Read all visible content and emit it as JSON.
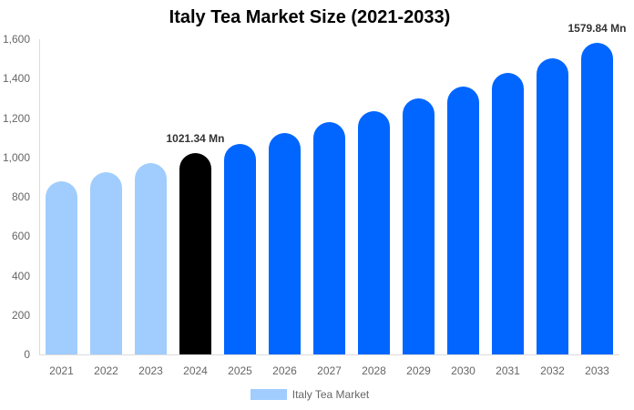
{
  "chart_data": {
    "type": "bar",
    "title": "Italy Tea Market Size (2021-2033)",
    "xlabel": "",
    "ylabel": "",
    "ylim": [
      0,
      1600
    ],
    "yticks": [
      0,
      200,
      400,
      600,
      800,
      1000,
      1200,
      1400,
      1600
    ],
    "ytick_labels": [
      "0",
      "200",
      "400",
      "600",
      "800",
      "1,000",
      "1,200",
      "1,400",
      "1,600"
    ],
    "categories": [
      "2021",
      "2022",
      "2023",
      "2024",
      "2025",
      "2026",
      "2027",
      "2028",
      "2029",
      "2030",
      "2031",
      "2032",
      "2033"
    ],
    "series": [
      {
        "name": "Italy Tea Market",
        "values": [
          878,
          925,
          971,
          1021.34,
          1068,
          1123,
          1179,
          1234,
          1299,
          1360,
          1429,
          1503,
          1579.84
        ]
      }
    ],
    "bar_colors": [
      "#a0cdfd",
      "#a0cdfd",
      "#a0cdfd",
      "#000000",
      "#0066ff",
      "#0066ff",
      "#0066ff",
      "#0066ff",
      "#0066ff",
      "#0066ff",
      "#0066ff",
      "#0066ff",
      "#0066ff"
    ],
    "annotations": [
      {
        "category": "2024",
        "text": "1021.34 Mn"
      },
      {
        "category": "2033",
        "text": "1579.84 Mn"
      }
    ],
    "legend": {
      "position": "bottom",
      "entries": [
        {
          "label": "Italy Tea Market",
          "color": "#a0cdfd"
        }
      ]
    },
    "grid": false
  }
}
